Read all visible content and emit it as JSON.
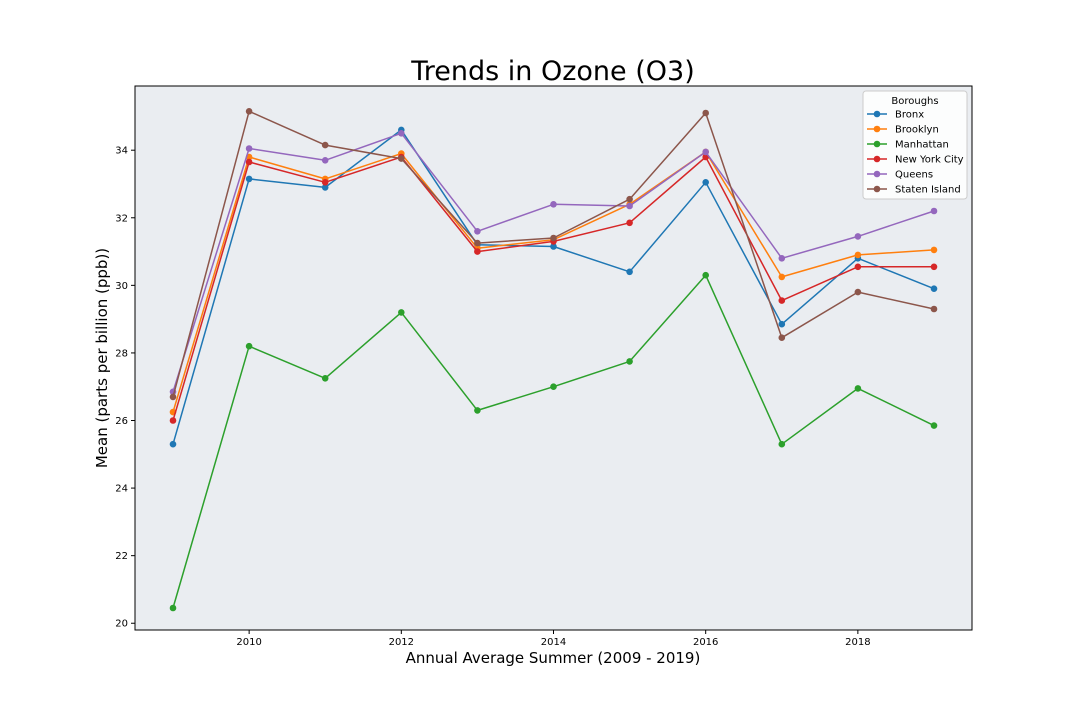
{
  "chart_data": {
    "type": "line",
    "title": "Trends in Ozone (O3)",
    "xlabel": "Annual Average Summer (2009 - 2019)",
    "ylabel": "Mean (parts per billion (ppb))",
    "x": [
      2009,
      2010,
      2011,
      2012,
      2013,
      2014,
      2015,
      2016,
      2017,
      2018,
      2019
    ],
    "xlim": [
      2008.5,
      2019.5
    ],
    "ylim": [
      19.8,
      35.9
    ],
    "xticks": [
      2010,
      2012,
      2014,
      2016,
      2018
    ],
    "yticks": [
      20,
      22,
      24,
      26,
      28,
      30,
      32,
      34
    ],
    "plot_background": "#eaedf1",
    "grid": false,
    "legend": {
      "title": "Boroughs",
      "placement": "top-right"
    },
    "series": [
      {
        "name": "Bronx",
        "color": "#1f77b4",
        "values": [
          25.3,
          33.15,
          32.9,
          34.6,
          31.2,
          31.15,
          30.4,
          33.05,
          28.85,
          30.8,
          29.9
        ]
      },
      {
        "name": "Brooklyn",
        "color": "#ff7f0e",
        "values": [
          26.25,
          33.8,
          33.15,
          33.9,
          31.1,
          31.35,
          32.4,
          33.95,
          30.25,
          30.9,
          31.05
        ]
      },
      {
        "name": "Manhattan",
        "color": "#2ca02c",
        "values": [
          20.45,
          28.2,
          27.25,
          29.2,
          26.3,
          27.0,
          27.75,
          30.3,
          25.3,
          26.95,
          25.85
        ]
      },
      {
        "name": "New York City",
        "color": "#d62728",
        "values": [
          26.0,
          33.65,
          33.05,
          33.8,
          31.0,
          31.3,
          31.85,
          33.8,
          29.55,
          30.55,
          30.55
        ]
      },
      {
        "name": "Queens",
        "color": "#9467bd",
        "values": [
          26.85,
          34.05,
          33.7,
          34.5,
          31.6,
          32.4,
          32.35,
          33.95,
          30.8,
          31.45,
          32.2
        ]
      },
      {
        "name": "Staten Island",
        "color": "#8c564b",
        "values": [
          26.7,
          35.15,
          34.15,
          33.75,
          31.25,
          31.4,
          32.55,
          35.1,
          28.45,
          29.8,
          29.3
        ]
      }
    ]
  }
}
